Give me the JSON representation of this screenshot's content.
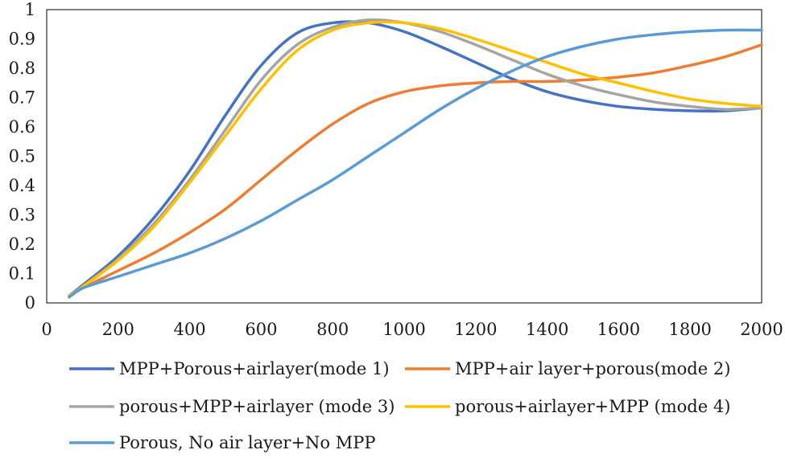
{
  "chart_data": {
    "type": "line",
    "title": "",
    "xlabel": "",
    "ylabel": "",
    "xlim": [
      0,
      2000
    ],
    "ylim": [
      0,
      1
    ],
    "x_ticks": [
      0,
      200,
      400,
      600,
      800,
      1000,
      1200,
      1400,
      1600,
      1800,
      2000
    ],
    "x_tick_labels": [
      "0",
      "200",
      "400",
      "600",
      "800",
      "1000",
      "1200",
      "1400",
      "1600",
      "1800",
      "2000"
    ],
    "y_ticks": [
      0,
      0.1,
      0.2,
      0.3,
      0.4,
      0.5,
      0.6,
      0.7,
      0.8,
      0.9,
      1
    ],
    "y_tick_labels": [
      "0",
      "0.1",
      "0.2",
      "0.3",
      "0.4",
      "0.5",
      "0.6",
      "0.7",
      "0.8",
      "0.9",
      "1"
    ],
    "grid": false,
    "legend_position": "bottom",
    "series": [
      {
        "name": "MPP+Porous+airlayer(mode 1)",
        "color": "#4472C4",
        "points": [
          [
            63,
            0.025
          ],
          [
            100,
            0.06
          ],
          [
            200,
            0.16
          ],
          [
            300,
            0.29
          ],
          [
            400,
            0.45
          ],
          [
            500,
            0.64
          ],
          [
            600,
            0.81
          ],
          [
            700,
            0.92
          ],
          [
            800,
            0.955
          ],
          [
            900,
            0.955
          ],
          [
            1000,
            0.925
          ],
          [
            1100,
            0.875
          ],
          [
            1200,
            0.82
          ],
          [
            1300,
            0.765
          ],
          [
            1400,
            0.72
          ],
          [
            1500,
            0.69
          ],
          [
            1600,
            0.67
          ],
          [
            1700,
            0.66
          ],
          [
            1800,
            0.655
          ],
          [
            1900,
            0.655
          ],
          [
            2000,
            0.665
          ]
        ]
      },
      {
        "name": "MPP+air layer+porous(mode 2)",
        "color": "#ED7D31",
        "points": [
          [
            63,
            0.02
          ],
          [
            100,
            0.05
          ],
          [
            200,
            0.11
          ],
          [
            300,
            0.17
          ],
          [
            400,
            0.24
          ],
          [
            500,
            0.32
          ],
          [
            600,
            0.42
          ],
          [
            700,
            0.52
          ],
          [
            800,
            0.61
          ],
          [
            900,
            0.68
          ],
          [
            1000,
            0.72
          ],
          [
            1100,
            0.74
          ],
          [
            1200,
            0.75
          ],
          [
            1300,
            0.755
          ],
          [
            1400,
            0.755
          ],
          [
            1500,
            0.76
          ],
          [
            1600,
            0.77
          ],
          [
            1700,
            0.785
          ],
          [
            1800,
            0.81
          ],
          [
            1900,
            0.84
          ],
          [
            2000,
            0.88
          ]
        ]
      },
      {
        "name": "porous+MPP+airlayer (mode 3)",
        "color": "#A5A5A5",
        "points": [
          [
            63,
            0.025
          ],
          [
            100,
            0.055
          ],
          [
            200,
            0.15
          ],
          [
            300,
            0.27
          ],
          [
            400,
            0.42
          ],
          [
            500,
            0.59
          ],
          [
            600,
            0.76
          ],
          [
            700,
            0.88
          ],
          [
            800,
            0.94
          ],
          [
            900,
            0.965
          ],
          [
            1000,
            0.955
          ],
          [
            1100,
            0.925
          ],
          [
            1200,
            0.88
          ],
          [
            1300,
            0.83
          ],
          [
            1400,
            0.78
          ],
          [
            1500,
            0.74
          ],
          [
            1600,
            0.71
          ],
          [
            1700,
            0.685
          ],
          [
            1800,
            0.67
          ],
          [
            1900,
            0.66
          ],
          [
            2000,
            0.665
          ]
        ]
      },
      {
        "name": "porous+airlayer+MPP (mode 4)",
        "color": "#FFC000",
        "points": [
          [
            63,
            0.025
          ],
          [
            100,
            0.055
          ],
          [
            200,
            0.145
          ],
          [
            300,
            0.26
          ],
          [
            400,
            0.41
          ],
          [
            500,
            0.57
          ],
          [
            600,
            0.73
          ],
          [
            700,
            0.86
          ],
          [
            800,
            0.93
          ],
          [
            900,
            0.955
          ],
          [
            1000,
            0.955
          ],
          [
            1100,
            0.935
          ],
          [
            1200,
            0.9
          ],
          [
            1300,
            0.86
          ],
          [
            1400,
            0.82
          ],
          [
            1500,
            0.78
          ],
          [
            1600,
            0.75
          ],
          [
            1700,
            0.72
          ],
          [
            1800,
            0.695
          ],
          [
            1900,
            0.68
          ],
          [
            2000,
            0.67
          ]
        ]
      },
      {
        "name": "Porous, No air layer+No MPP",
        "color": "#5B9BD5",
        "points": [
          [
            63,
            0.02
          ],
          [
            100,
            0.05
          ],
          [
            200,
            0.09
          ],
          [
            300,
            0.13
          ],
          [
            400,
            0.17
          ],
          [
            500,
            0.22
          ],
          [
            600,
            0.28
          ],
          [
            700,
            0.35
          ],
          [
            800,
            0.42
          ],
          [
            900,
            0.5
          ],
          [
            1000,
            0.58
          ],
          [
            1100,
            0.66
          ],
          [
            1200,
            0.73
          ],
          [
            1300,
            0.79
          ],
          [
            1400,
            0.84
          ],
          [
            1500,
            0.875
          ],
          [
            1600,
            0.9
          ],
          [
            1700,
            0.915
          ],
          [
            1800,
            0.925
          ],
          [
            1900,
            0.93
          ],
          [
            2000,
            0.93
          ]
        ]
      }
    ]
  }
}
